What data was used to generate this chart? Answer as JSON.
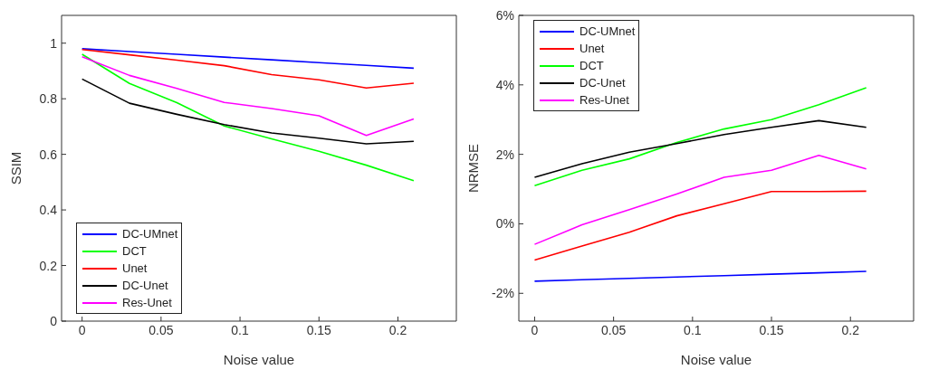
{
  "chart_data": [
    {
      "type": "line",
      "xlabel": "Noise value",
      "ylabel": "SSIM",
      "x": [
        0,
        0.03,
        0.06,
        0.09,
        0.12,
        0.15,
        0.18,
        0.21
      ],
      "xlim": [
        -0.013,
        0.237
      ],
      "xticks": [
        0,
        0.05,
        0.1,
        0.15,
        0.2
      ],
      "ylim": [
        0,
        1.1
      ],
      "yticks": [
        0,
        0.2,
        0.4,
        0.6,
        0.8,
        1
      ],
      "grid": false,
      "legend": "bottom left",
      "marker": "none",
      "line_style": "solid",
      "series": [
        {
          "name": "DC-UMnet",
          "color": "#0000ff",
          "values": [
            0.98,
            0.97,
            0.96,
            0.95,
            0.94,
            0.93,
            0.92,
            0.91
          ]
        },
        {
          "name": "DCT",
          "color": "#00ff00",
          "values": [
            0.96,
            0.855,
            0.786,
            0.702,
            0.656,
            0.611,
            0.561,
            0.505
          ]
        },
        {
          "name": "Unet",
          "color": "#ff0000",
          "values": [
            0.977,
            0.958,
            0.939,
            0.919,
            0.887,
            0.868,
            0.839,
            0.856
          ]
        },
        {
          "name": "DC-Unet",
          "color": "#000000",
          "values": [
            0.871,
            0.784,
            0.744,
            0.707,
            0.677,
            0.658,
            0.638,
            0.647
          ]
        },
        {
          "name": "Res-Unet",
          "color": "#ff00ff",
          "values": [
            0.951,
            0.884,
            0.837,
            0.787,
            0.765,
            0.739,
            0.668,
            0.727
          ]
        }
      ]
    },
    {
      "type": "line",
      "xlabel": "Noise value",
      "ylabel": "NRMSE",
      "x": [
        0,
        0.03,
        0.06,
        0.09,
        0.12,
        0.15,
        0.18,
        0.21
      ],
      "xlim": [
        -0.01,
        0.24
      ],
      "xticks": [
        0,
        0.05,
        0.1,
        0.15,
        0.2
      ],
      "ylim": [
        -2.8,
        6
      ],
      "yticks": [
        {
          "value": -2,
          "label": "-2%"
        },
        {
          "value": 0,
          "label": "0%"
        },
        {
          "value": 2,
          "label": "2%"
        },
        {
          "value": 4,
          "label": "4%"
        },
        {
          "value": 6,
          "label": "6%"
        }
      ],
      "grid": false,
      "legend": "top left",
      "marker": "none",
      "line_style": "solid",
      "series": [
        {
          "name": "DC-UMnet",
          "color": "#0000ff",
          "values": [
            -1.65,
            -1.61,
            -1.57,
            -1.53,
            -1.49,
            -1.45,
            -1.41,
            -1.37
          ]
        },
        {
          "name": "Unet",
          "color": "#ff0000",
          "values": [
            -1.04,
            -0.64,
            -0.24,
            0.23,
            0.58,
            0.93,
            0.93,
            0.94
          ]
        },
        {
          "name": "DCT",
          "color": "#00ff00",
          "values": [
            1.1,
            1.54,
            1.87,
            2.34,
            2.73,
            3.0,
            3.43,
            3.92
          ]
        },
        {
          "name": "DC-Unet",
          "color": "#000000",
          "values": [
            1.34,
            1.73,
            2.06,
            2.31,
            2.57,
            2.78,
            2.97,
            2.78
          ]
        },
        {
          "name": "Res-Unet",
          "color": "#ff00ff",
          "values": [
            -0.59,
            -0.03,
            0.41,
            0.86,
            1.34,
            1.54,
            1.97,
            1.58
          ]
        }
      ]
    }
  ]
}
